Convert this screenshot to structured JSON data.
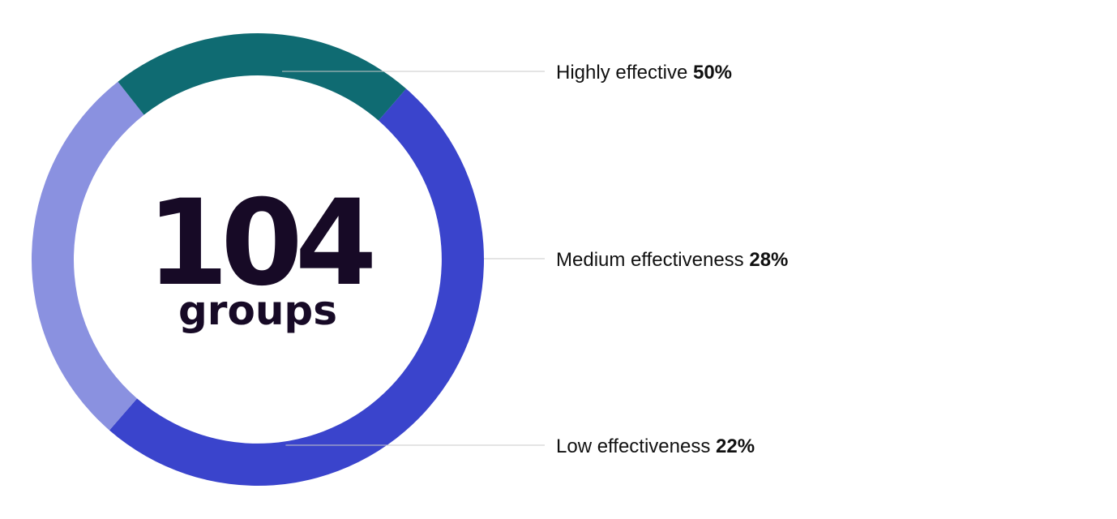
{
  "chart_data": {
    "type": "pie",
    "center_value": "104",
    "center_unit": "groups",
    "categories": [
      "Highly effective",
      "Medium effectiveness",
      "Low effectiveness"
    ],
    "values": [
      50,
      28,
      22
    ],
    "value_labels": [
      "50%",
      "28%",
      "22%"
    ],
    "colors": [
      "#3a44cc",
      "#8a91e0",
      "#0f6b72"
    ],
    "connector_color": "#c8c8c8"
  }
}
